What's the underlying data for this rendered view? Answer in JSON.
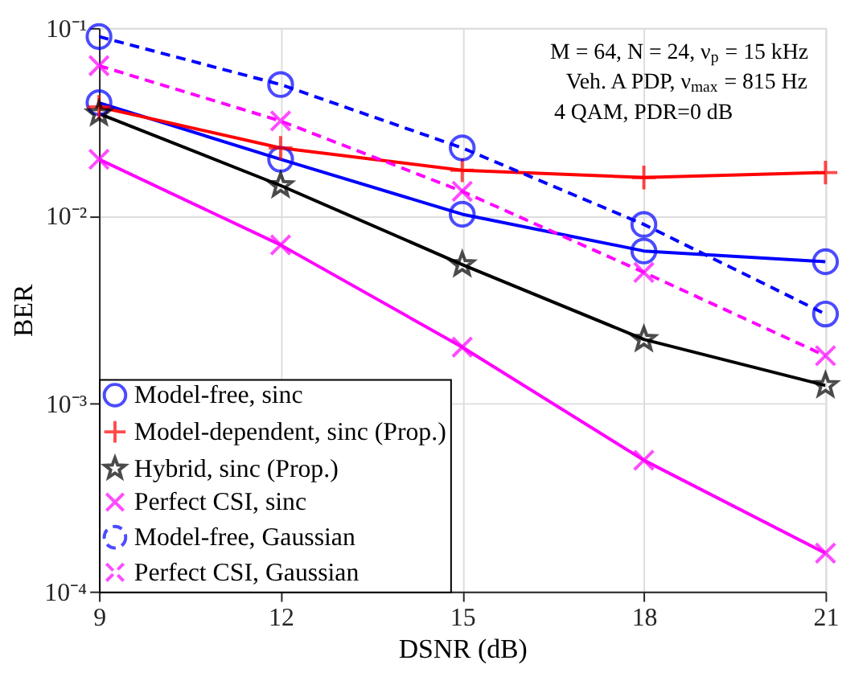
{
  "chart_data": {
    "type": "line",
    "xlabel": "DSNR (dB)",
    "ylabel": "BER",
    "log": "y",
    "grid": true,
    "legend": "bottom left",
    "x": [
      9,
      12,
      15,
      18,
      21
    ],
    "xlim": [
      9,
      21
    ],
    "xticks": [
      9,
      12,
      15,
      18,
      21
    ],
    "ylim": [
      0.0001,
      0.1
    ],
    "yticks": [
      {
        "value": 0.0001,
        "label": "10⁻⁴"
      },
      {
        "value": 0.001,
        "label": "10⁻³"
      },
      {
        "value": 0.01,
        "label": "10⁻²"
      },
      {
        "value": 0.1,
        "label": "10⁻¹"
      }
    ],
    "annotations": [
      "M = 64, N = 24, ν$_{p}$ = 15 kHz",
      "Veh. A PDP, ν$_{max}$ = 815 Hz",
      "4 QAM, PDR=0 dB"
    ],
    "series": [
      {
        "name": "Model-free, sinc",
        "color": "#0000ff",
        "marker": "circle",
        "line_style": "solid",
        "values": [
          0.04,
          0.02,
          0.0102,
          0.0065,
          0.0057
        ]
      },
      {
        "name": "Model-dependent, sinc (Prop.)",
        "color": "#ff0000",
        "marker": "cross",
        "line_style": "solid",
        "values": [
          0.038,
          0.023,
          0.0175,
          0.016,
          0.017
        ]
      },
      {
        "name": "Hybrid, sinc (Prop.)",
        "color": "#000000",
        "marker": "star",
        "line_style": "solid",
        "values": [
          0.035,
          0.0145,
          0.0055,
          0.0022,
          0.00125
        ]
      },
      {
        "name": "Perfect CSI, sinc",
        "color": "#ff00ff",
        "marker": "x",
        "line_style": "solid",
        "values": [
          0.02,
          0.007,
          0.002,
          0.0005,
          0.00016
        ]
      },
      {
        "name": "Model-free, Gaussian",
        "color": "#0000ff",
        "marker": "circle",
        "line_style": "dashed",
        "values": [
          0.09,
          0.05,
          0.023,
          0.009,
          0.003
        ]
      },
      {
        "name": "Perfect CSI, Gaussian",
        "color": "#ff00ff",
        "marker": "x",
        "line_style": "dashed",
        "values": [
          0.063,
          0.032,
          0.0135,
          0.005,
          0.0018
        ]
      }
    ]
  }
}
